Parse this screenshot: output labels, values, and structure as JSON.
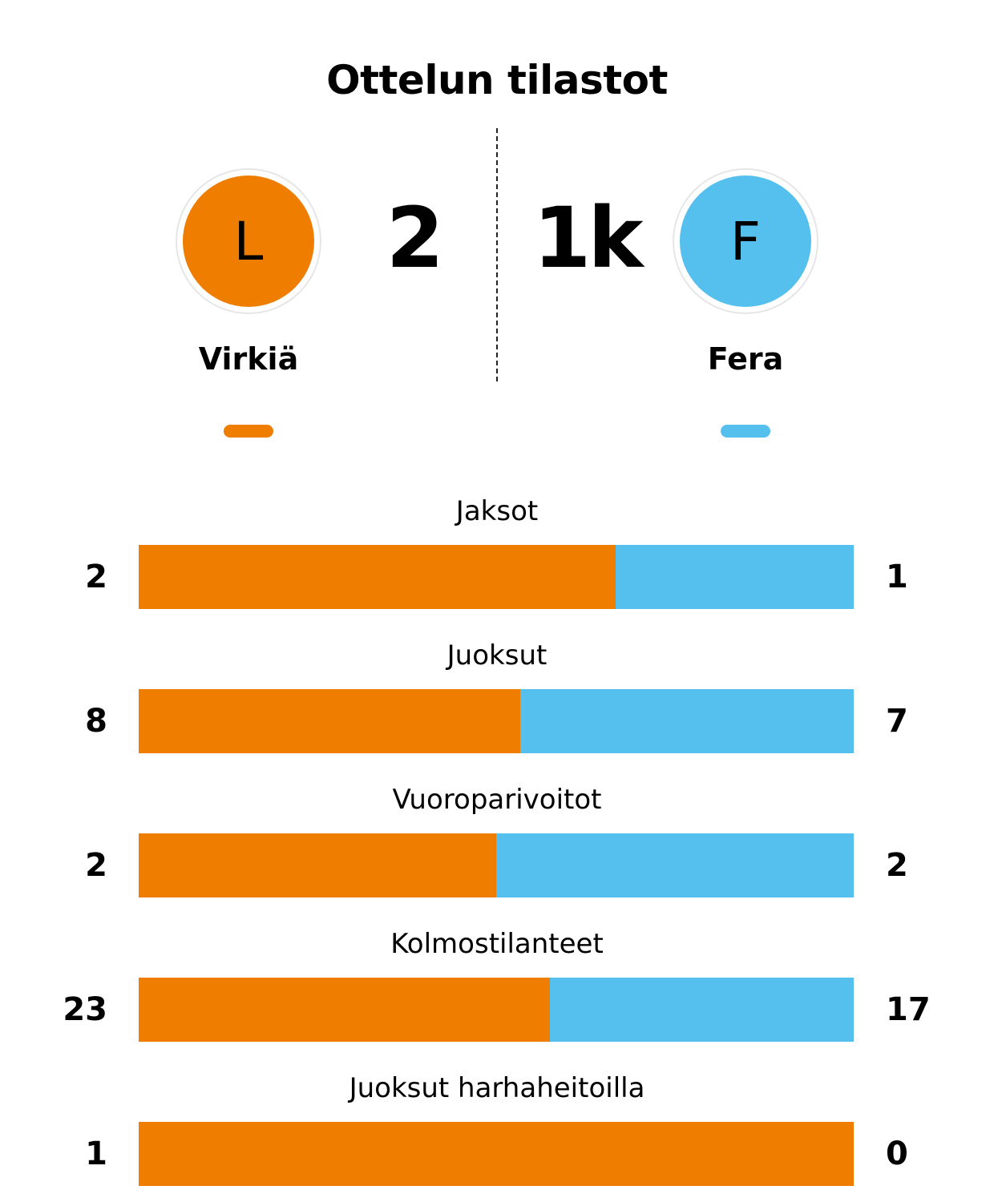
{
  "title": "Ottelun tilastot",
  "colors": {
    "home": "#EE7D00",
    "away": "#55C0EE"
  },
  "home": {
    "name": "Virkiä",
    "score": "2",
    "logo_letter": "L"
  },
  "away": {
    "name": "Fera",
    "score": "1k",
    "logo_letter": "F"
  },
  "chart_data": {
    "type": "bar",
    "orientation": "horizontal-stacked-100",
    "title": "Ottelun tilastot",
    "categories": [
      "Jaksot",
      "Juoksut",
      "Vuoroparivoitot",
      "Kolmostilanteet",
      "Juoksut harhaheitoilla"
    ],
    "series": [
      {
        "name": "Virkiä",
        "values": [
          2,
          8,
          2,
          23,
          1
        ]
      },
      {
        "name": "Fera",
        "values": [
          1,
          7,
          2,
          17,
          0
        ]
      }
    ]
  }
}
